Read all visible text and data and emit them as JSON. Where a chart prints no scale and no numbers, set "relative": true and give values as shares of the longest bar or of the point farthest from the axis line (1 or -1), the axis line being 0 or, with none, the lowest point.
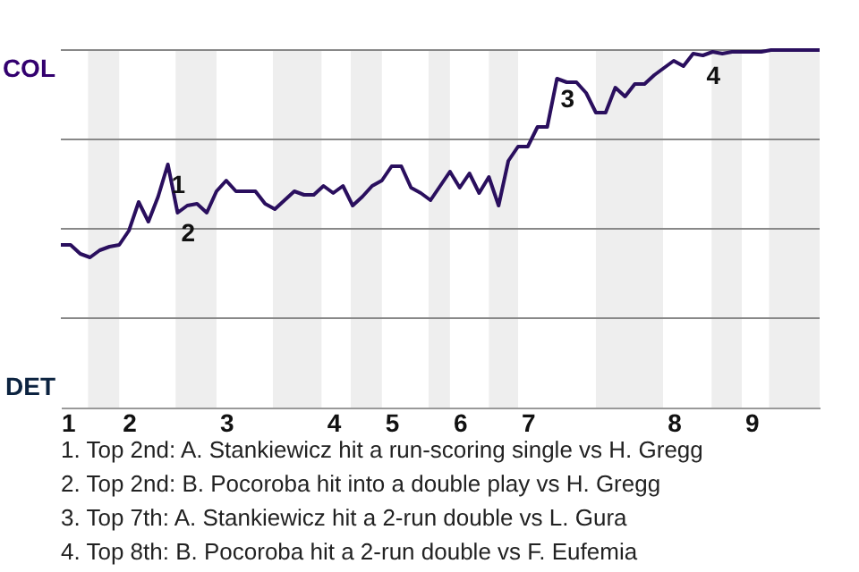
{
  "chart_data": {
    "type": "line",
    "relative": true,
    "categories": [
      "1",
      null,
      null,
      null,
      null,
      null,
      null,
      "2",
      null,
      null,
      null,
      null,
      null,
      null,
      null,
      null,
      null,
      "3",
      null,
      null,
      null,
      null,
      null,
      null,
      null,
      null,
      null,
      null,
      "4",
      null,
      null,
      null,
      null,
      null,
      "5",
      null,
      null,
      null,
      null,
      null,
      null,
      "6",
      null,
      null,
      null,
      null,
      null,
      null,
      "7",
      null,
      null,
      null,
      null,
      null,
      null,
      null,
      null,
      null,
      null,
      null,
      null,
      null,
      null,
      "8",
      null,
      null,
      null,
      null,
      null,
      null,
      null,
      "9",
      null,
      null,
      null,
      null,
      null,
      null,
      null
    ],
    "series": [
      {
        "color": "#2a0f5e",
        "values": [
          0.455,
          0.455,
          0.43,
          0.42,
          0.44,
          0.45,
          0.455,
          0.495,
          0.575,
          0.52,
          0.59,
          0.68,
          0.545,
          0.565,
          0.57,
          0.545,
          0.605,
          0.635,
          0.605,
          0.605,
          0.605,
          0.57,
          0.555,
          0.58,
          0.605,
          0.595,
          0.595,
          0.62,
          0.6,
          0.62,
          0.565,
          0.59,
          0.62,
          0.635,
          0.675,
          0.675,
          0.615,
          0.6,
          0.58,
          0.62,
          0.66,
          0.615,
          0.655,
          0.6,
          0.645,
          0.565,
          0.69,
          0.73,
          0.73,
          0.785,
          0.785,
          0.92,
          0.91,
          0.91,
          0.88,
          0.825,
          0.825,
          0.895,
          0.87,
          0.905,
          0.905,
          0.93,
          0.95,
          0.97,
          0.955,
          0.99,
          0.985,
          0.995,
          0.99,
          0.995,
          0.995,
          0.995,
          0.995,
          1.0,
          1.0,
          1.0,
          1.0,
          1.0,
          1.0
        ]
      }
    ],
    "ref_lines": [
      {
        "axis": "y",
        "value": 0.25,
        "color": "#888888"
      },
      {
        "axis": "y",
        "value": 0.5,
        "color": "#888888"
      },
      {
        "axis": "y",
        "value": 0.75,
        "color": "#888888"
      },
      {
        "axis": "y",
        "value": 1,
        "color": "#888888"
      }
    ],
    "annotations": [
      "COL",
      "DET",
      {
        "text": "1",
        "y": 0.68
      },
      {
        "text": "2",
        "y": 0.545
      },
      {
        "text": "3",
        "y": 0.92
      },
      {
        "text": "4",
        "y": 0.985
      },
      "1. Top 2nd: A. Stankiewicz hit a run-scoring single vs H. Gregg",
      "2. Top 2nd: B. Pocoroba hit into a double play vs H. Gregg",
      "3. Top 7th: A. Stankiewicz hit a 2-run double vs L. Gura",
      "4. Top 8th: B. Pocoroba hit a 2-run double vs F. Eufemia"
    ],
    "grid": false,
    "marker": "none",
    "line_style": "solid"
  }
}
